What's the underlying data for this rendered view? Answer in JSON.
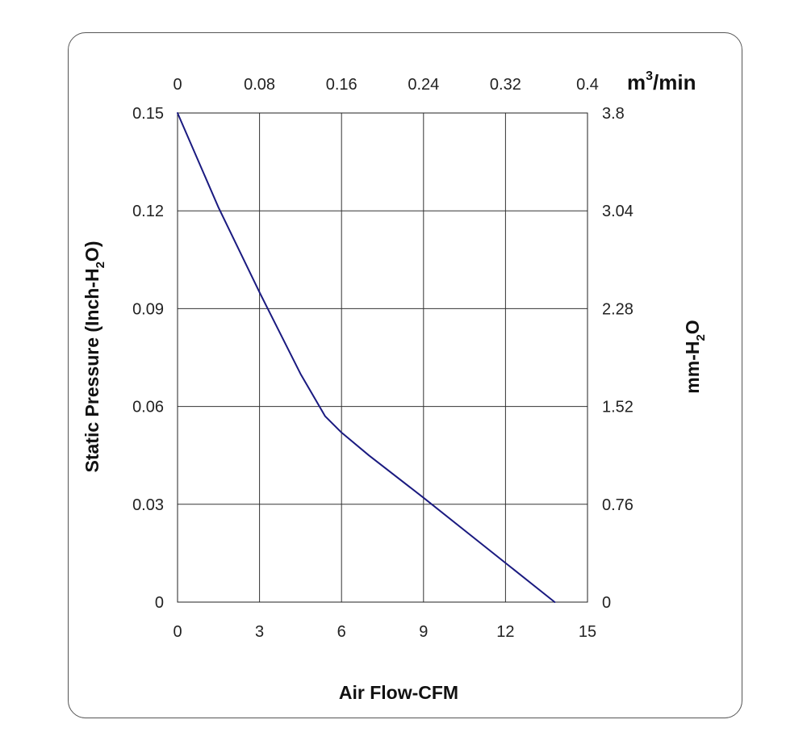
{
  "chart_data": {
    "type": "line",
    "title": "",
    "xlabel": "Air Flow-CFM",
    "ylabel": {
      "prefix": "Static Pressure (Inch-H",
      "sub": "2",
      "suffix": "O)"
    },
    "y2label": {
      "prefix": "mm-H",
      "sub": "2",
      "suffix": "O"
    },
    "x2label": {
      "prefix": "m",
      "sup": "3",
      "suffix": "/min"
    },
    "xlim": [
      0,
      15
    ],
    "ylim": [
      0,
      0.15
    ],
    "x_ticks": [
      "0",
      "3",
      "6",
      "9",
      "12",
      "15"
    ],
    "x_tick_values": [
      0,
      3,
      6,
      9,
      12,
      15
    ],
    "y_ticks": [
      "0",
      "0.03",
      "0.06",
      "0.09",
      "0.12",
      "0.15"
    ],
    "y_tick_values": [
      0,
      0.03,
      0.06,
      0.09,
      0.12,
      0.15
    ],
    "x2_ticks": [
      "0",
      "0.08",
      "0.16",
      "0.24",
      "0.32",
      "0.4"
    ],
    "y2_ticks": [
      "0",
      "0.76",
      "1.52",
      "2.28",
      "3.04",
      "3.8"
    ],
    "grid": true,
    "series": [
      {
        "color": "#1a1a80",
        "x": [
          0,
          1.5,
          3.0,
          4.5,
          5.4,
          6.0,
          7.0,
          9.0,
          12.0,
          13.8
        ],
        "y": [
          0.15,
          0.121,
          0.095,
          0.07,
          0.057,
          0.052,
          0.045,
          0.032,
          0.012,
          0.0
        ]
      }
    ]
  }
}
